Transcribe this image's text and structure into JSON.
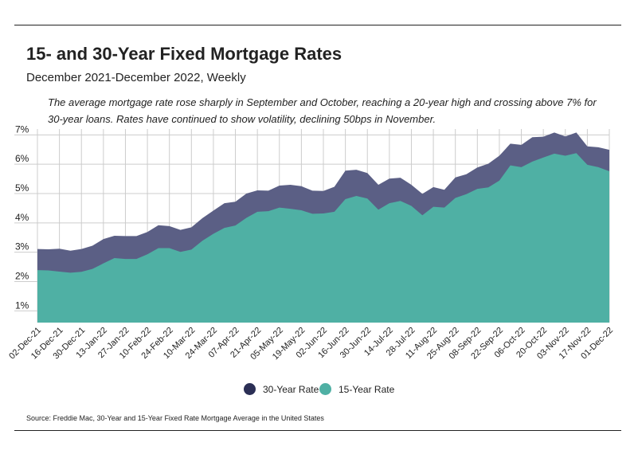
{
  "header": {
    "title": "15- and 30-Year Fixed Mortgage Rates",
    "subtitle": "December 2021-December 2022, Weekly",
    "annotation": "The average mortgage rate rose sharply in September and October, reaching a 20-year high and crossing above 7% for 30-year loans. Rates have continued to show volatility, declining 50bps in November."
  },
  "footer": {
    "source": "Source:  Freddie Mac, 30-Year  and 15-Year Fixed Rate Mortgage Average in the United States"
  },
  "colors": {
    "series_30": "#5b5f85",
    "series_30_legend": "#2b2f55",
    "series_15": "#4fb0a4",
    "grid": "#cccccc",
    "text": "#222222"
  },
  "chart_data": {
    "type": "area",
    "title": "15- and 30-Year Fixed Mortgage Rates",
    "subtitle": "December 2021-December 2022, Weekly",
    "xlabel": "",
    "ylabel": "",
    "ylim": [
      0.6,
      7.2
    ],
    "yticks": [
      1,
      2,
      3,
      4,
      5,
      6,
      7
    ],
    "ytick_labels": [
      "1%",
      "2%",
      "3%",
      "4%",
      "5%",
      "6%",
      "7%"
    ],
    "grid": true,
    "legend_position": "bottom-center",
    "x_tick_labels": [
      "02-Dec-21",
      "16-Dec-21",
      "30-Dec-21",
      "13-Jan-22",
      "27-Jan-22",
      "10-Feb-22",
      "24-Feb-22",
      "10-Mar-22",
      "24-Mar-22",
      "07-Apr-22",
      "21-Apr-22",
      "05-May-22",
      "19-May-22",
      "02-Jun-22",
      "16-Jun-22",
      "30-Jun-22",
      "14-Jul-22",
      "28-Jul-22",
      "11-Aug-22",
      "25-Aug-22",
      "08-Sep-22",
      "22-Sep-22",
      "06-Oct-22",
      "20-Oct-22",
      "03-Nov-22",
      "17-Nov-22",
      "01-Dec-22"
    ],
    "x": [
      "02-Dec-21",
      "09-Dec-21",
      "16-Dec-21",
      "23-Dec-21",
      "30-Dec-21",
      "06-Jan-22",
      "13-Jan-22",
      "20-Jan-22",
      "27-Jan-22",
      "03-Feb-22",
      "10-Feb-22",
      "17-Feb-22",
      "24-Feb-22",
      "03-Mar-22",
      "10-Mar-22",
      "17-Mar-22",
      "24-Mar-22",
      "31-Mar-22",
      "07-Apr-22",
      "14-Apr-22",
      "21-Apr-22",
      "28-Apr-22",
      "05-May-22",
      "12-May-22",
      "19-May-22",
      "26-May-22",
      "02-Jun-22",
      "09-Jun-22",
      "16-Jun-22",
      "23-Jun-22",
      "30-Jun-22",
      "07-Jul-22",
      "14-Jul-22",
      "21-Jul-22",
      "28-Jul-22",
      "04-Aug-22",
      "11-Aug-22",
      "18-Aug-22",
      "25-Aug-22",
      "01-Sep-22",
      "08-Sep-22",
      "15-Sep-22",
      "22-Sep-22",
      "29-Sep-22",
      "06-Oct-22",
      "13-Oct-22",
      "20-Oct-22",
      "27-Oct-22",
      "03-Nov-22",
      "10-Nov-22",
      "17-Nov-22",
      "24-Nov-22",
      "01-Dec-22"
    ],
    "series": [
      {
        "name": "30-Year Rate",
        "values": [
          3.11,
          3.1,
          3.12,
          3.05,
          3.11,
          3.22,
          3.45,
          3.56,
          3.55,
          3.55,
          3.69,
          3.92,
          3.89,
          3.76,
          3.85,
          4.16,
          4.42,
          4.67,
          4.72,
          5.0,
          5.11,
          5.1,
          5.27,
          5.3,
          5.25,
          5.1,
          5.09,
          5.23,
          5.78,
          5.81,
          5.7,
          5.3,
          5.51,
          5.54,
          5.3,
          4.99,
          5.22,
          5.13,
          5.55,
          5.66,
          5.89,
          6.02,
          6.29,
          6.7,
          6.66,
          6.92,
          6.94,
          7.08,
          6.95,
          7.08,
          6.61,
          6.58,
          6.49
        ]
      },
      {
        "name": "15-Year Rate",
        "values": [
          2.39,
          2.38,
          2.34,
          2.3,
          2.33,
          2.43,
          2.62,
          2.8,
          2.77,
          2.77,
          2.93,
          3.14,
          3.14,
          3.01,
          3.09,
          3.39,
          3.63,
          3.83,
          3.91,
          4.17,
          4.38,
          4.4,
          4.52,
          4.48,
          4.43,
          4.31,
          4.32,
          4.38,
          4.81,
          4.92,
          4.83,
          4.45,
          4.67,
          4.75,
          4.58,
          4.26,
          4.55,
          4.52,
          4.85,
          4.98,
          5.16,
          5.21,
          5.44,
          5.96,
          5.9,
          6.09,
          6.23,
          6.36,
          6.29,
          6.38,
          5.98,
          5.9,
          5.76
        ]
      }
    ]
  }
}
